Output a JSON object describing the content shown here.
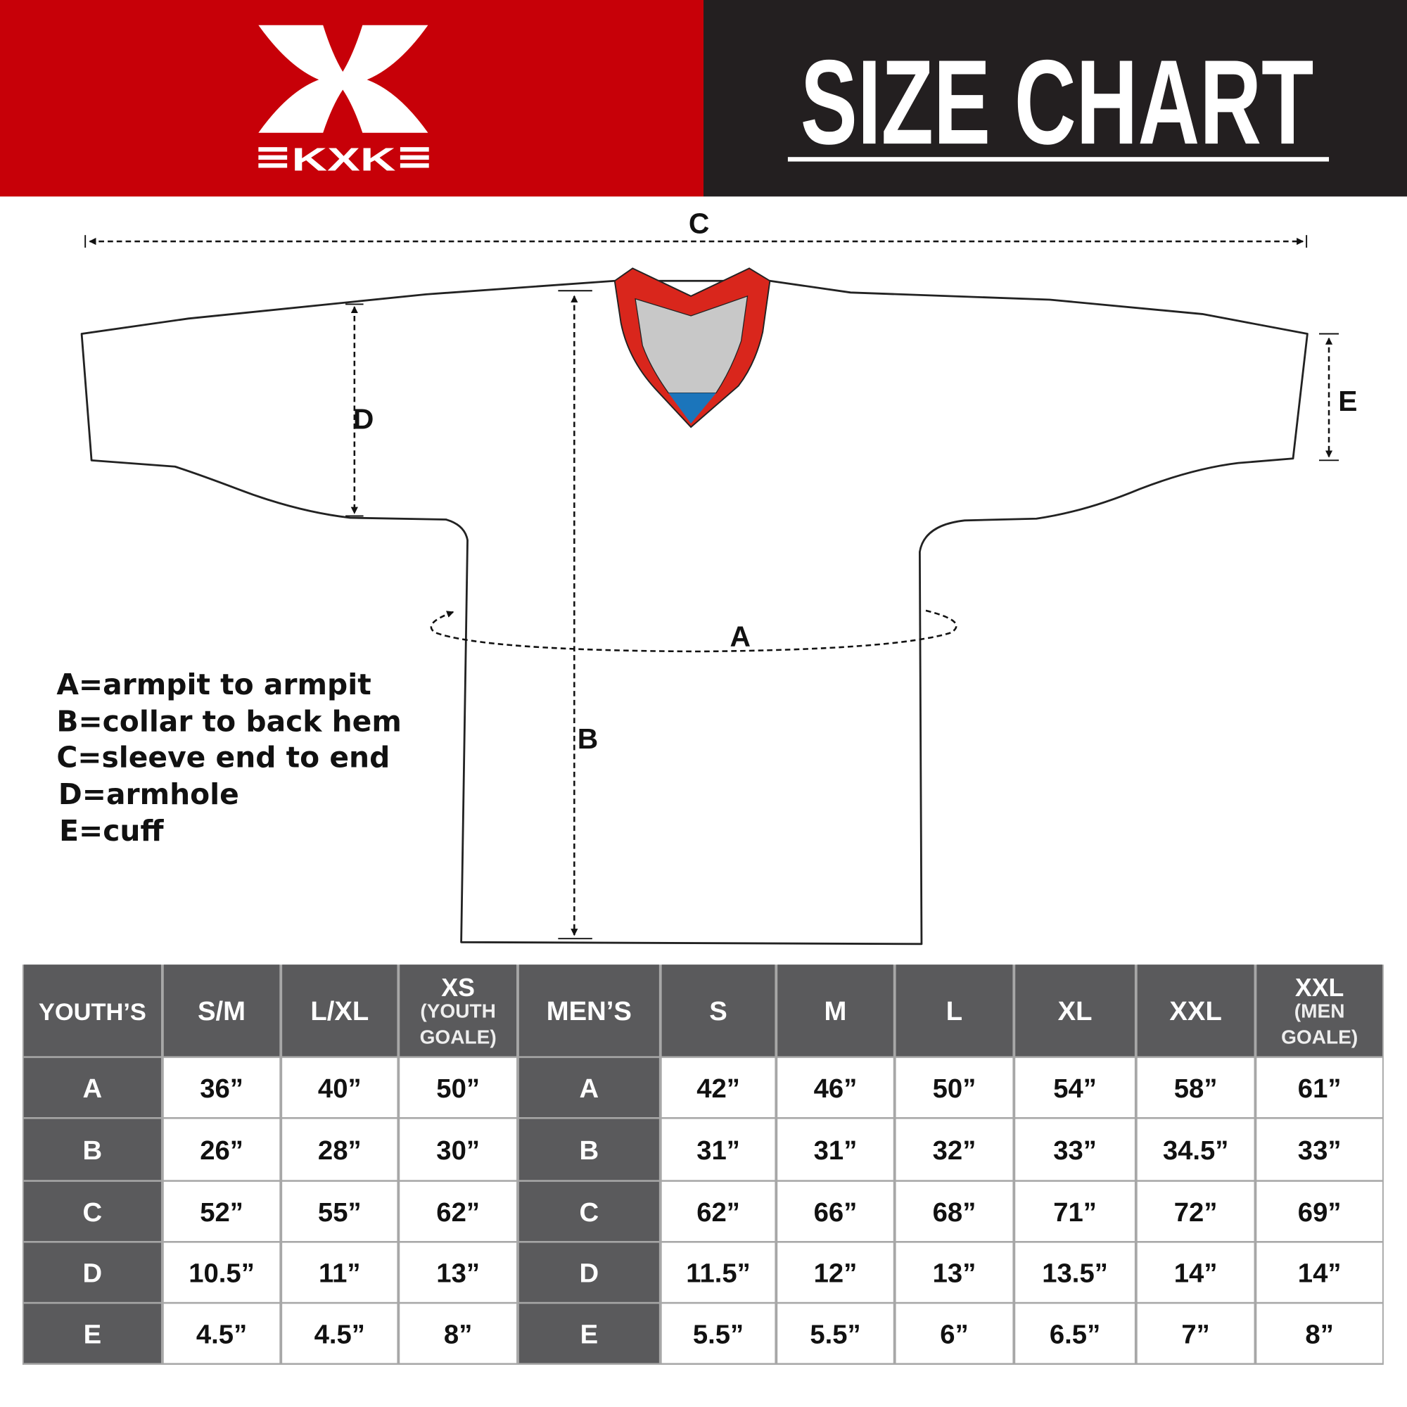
{
  "header": {
    "brand": "KXK",
    "title": "SIZE CHART",
    "colors": {
      "brand_red": "#c70008",
      "dark": "#231f20"
    }
  },
  "diagram": {
    "labels": {
      "a": "A",
      "b": "B",
      "c": "C",
      "d": "D",
      "e": "E"
    },
    "colors": {
      "collar_red": "#d9261c",
      "collar_grey": "#c8c8c8",
      "collar_blue": "#1b75bb"
    }
  },
  "legend": [
    "A=armpit to armpit",
    "B=collar to back hem",
    "C=sleeve end to end",
    "D=armhole",
    "E=cuff"
  ],
  "table": {
    "youth_header": "YOUTH’S",
    "youth_sizes": [
      {
        "label": "S/M"
      },
      {
        "label": "L/XL"
      },
      {
        "label": "XS",
        "sub": [
          "(YOUTH",
          "GOALE)"
        ]
      }
    ],
    "men_header": "MEN’S",
    "men_sizes": [
      {
        "label": "S"
      },
      {
        "label": "M"
      },
      {
        "label": "L"
      },
      {
        "label": "XL"
      },
      {
        "label": "XXL"
      },
      {
        "label": "XXL",
        "sub": [
          "(MEN",
          "GOALE)"
        ]
      }
    ],
    "rows": [
      {
        "key": "A",
        "youth": [
          "36”",
          "40”",
          "50”"
        ],
        "men": [
          "42”",
          "46”",
          "50”",
          "54”",
          "58”",
          "61”"
        ]
      },
      {
        "key": "B",
        "youth": [
          "26”",
          "28”",
          "30”"
        ],
        "men": [
          "31”",
          "31”",
          "32”",
          "33”",
          "34.5”",
          "33”"
        ]
      },
      {
        "key": "C",
        "youth": [
          "52”",
          "55”",
          "62”"
        ],
        "men": [
          "62”",
          "66”",
          "68”",
          "71”",
          "72”",
          "69”"
        ]
      },
      {
        "key": "D",
        "youth": [
          "10.5”",
          "11”",
          "13”"
        ],
        "men": [
          "11.5”",
          "12”",
          "13”",
          "13.5”",
          "14”",
          "14”"
        ]
      },
      {
        "key": "E",
        "youth": [
          "4.5”",
          "4.5”",
          "8”"
        ],
        "men": [
          "5.5”",
          "5.5”",
          "6”",
          "6.5”",
          "7”",
          "8”"
        ]
      }
    ],
    "colors": {
      "header_bg": "#5a5a5c",
      "grid": "#a7a7a7"
    }
  }
}
